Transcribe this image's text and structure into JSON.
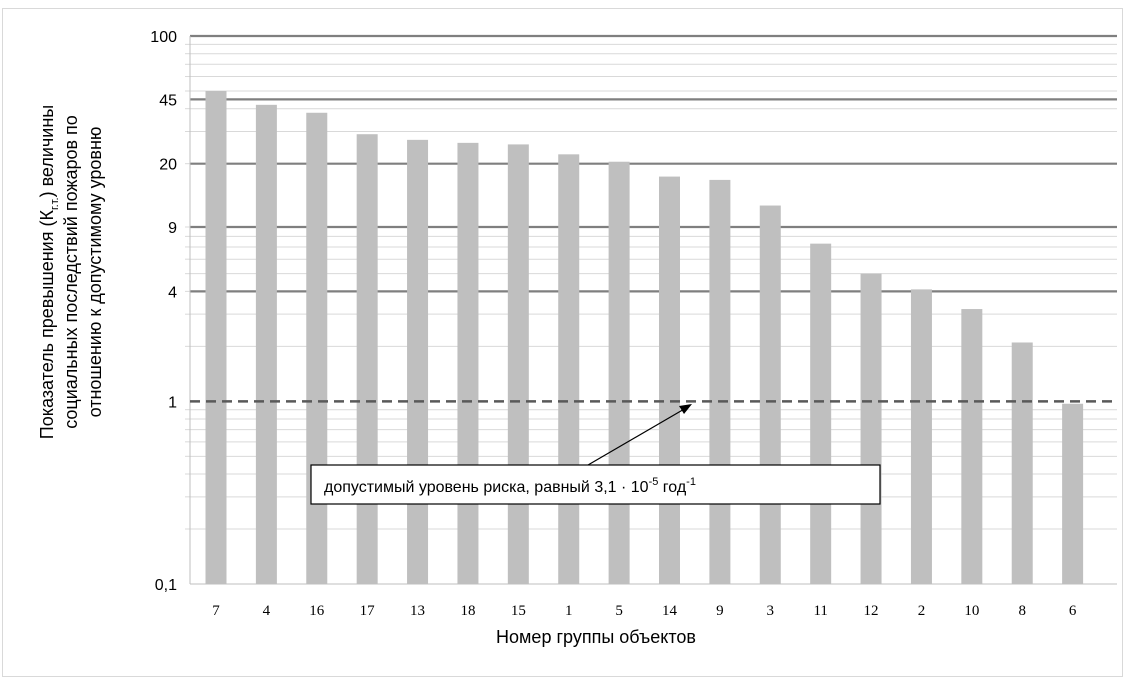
{
  "chart_data": {
    "type": "bar",
    "scale": "log",
    "ylim": [
      0.1,
      100
    ],
    "y_ticks": [
      {
        "value": 100,
        "label": "100"
      },
      {
        "value": 45,
        "label": "45"
      },
      {
        "value": 20,
        "label": "20"
      },
      {
        "value": 9,
        "label": "9"
      },
      {
        "value": 4,
        "label": "4"
      },
      {
        "value": 1,
        "label": "1"
      },
      {
        "value": 0.1,
        "label": "0,1"
      }
    ],
    "categories": [
      "7",
      "4",
      "16",
      "17",
      "13",
      "18",
      "15",
      "1",
      "5",
      "14",
      "9",
      "3",
      "11",
      "12",
      "2",
      "10",
      "8",
      "6"
    ],
    "values": [
      50,
      42,
      38,
      29,
      27,
      26,
      25.5,
      22.5,
      20.5,
      17,
      16.3,
      11.8,
      7.3,
      5,
      4.1,
      3.2,
      2.1,
      0.97
    ],
    "ylabel_lines": [
      "Показатель  превышения (К",
      "социальных последствий пожаров по",
      "отношению к допустимому уровню"
    ],
    "ylabel_sub": "г.т.",
    "ylabel_suffix": ") величины",
    "xlabel": "Номер группы объектов",
    "threshold": {
      "value": 1,
      "text_main": "допустимый уровень риска, равный 3,1 · 10",
      "text_exp1": "-5",
      "text_unit": " год",
      "text_exp2": "-1"
    },
    "colors": {
      "bar": "#bfbfbf",
      "grid_major": "#7f7f7f",
      "grid_minor": "#d9d9d9",
      "threshold": "#595959"
    }
  }
}
